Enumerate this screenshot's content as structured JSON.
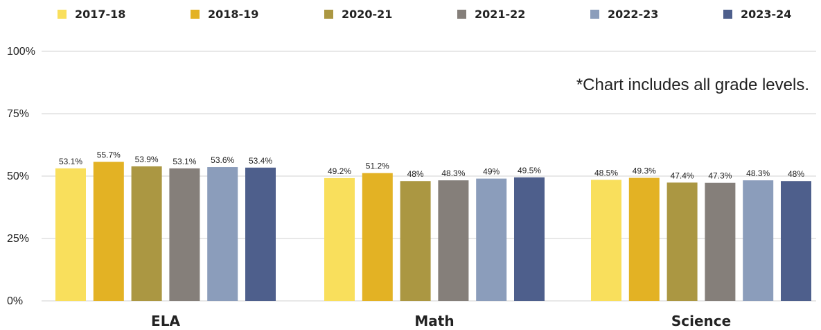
{
  "chart_data": {
    "type": "bar",
    "title": "",
    "xlabel": "",
    "ylabel": "",
    "categories": [
      "ELA",
      "Math",
      "Science"
    ],
    "series": [
      {
        "name": "2017-18",
        "color": "#f9df5c",
        "values": [
          53.1,
          49.2,
          48.5
        ]
      },
      {
        "name": "2018-19",
        "color": "#e3b224",
        "values": [
          55.7,
          51.2,
          49.3
        ]
      },
      {
        "name": "2020-21",
        "color": "#ab9742",
        "values": [
          53.9,
          48,
          47.4
        ]
      },
      {
        "name": "2021-22",
        "color": "#857f7a",
        "values": [
          53.1,
          48.3,
          47.3
        ]
      },
      {
        "name": "2022-23",
        "color": "#8b9dbb",
        "values": [
          53.6,
          49,
          48.3
        ]
      },
      {
        "name": "2023-24",
        "color": "#4e5f8c",
        "values": [
          53.4,
          49.5,
          48
        ]
      }
    ],
    "value_labels": [
      [
        "53.1%",
        "49.2%",
        "48.5%"
      ],
      [
        "55.7%",
        "51.2%",
        "49.3%"
      ],
      [
        "53.9%",
        "48%",
        "47.4%"
      ],
      [
        "53.1%",
        "48.3%",
        "47.3%"
      ],
      [
        "53.6%",
        "49%",
        "48.3%"
      ],
      [
        "53.4%",
        "49.5%",
        "48%"
      ]
    ],
    "yticks": [
      "0%",
      "25%",
      "50%",
      "75%",
      "100%"
    ],
    "ylim": [
      0,
      100
    ],
    "grid": false,
    "legend_position": "top",
    "annotation": "*Chart includes all grade levels."
  }
}
